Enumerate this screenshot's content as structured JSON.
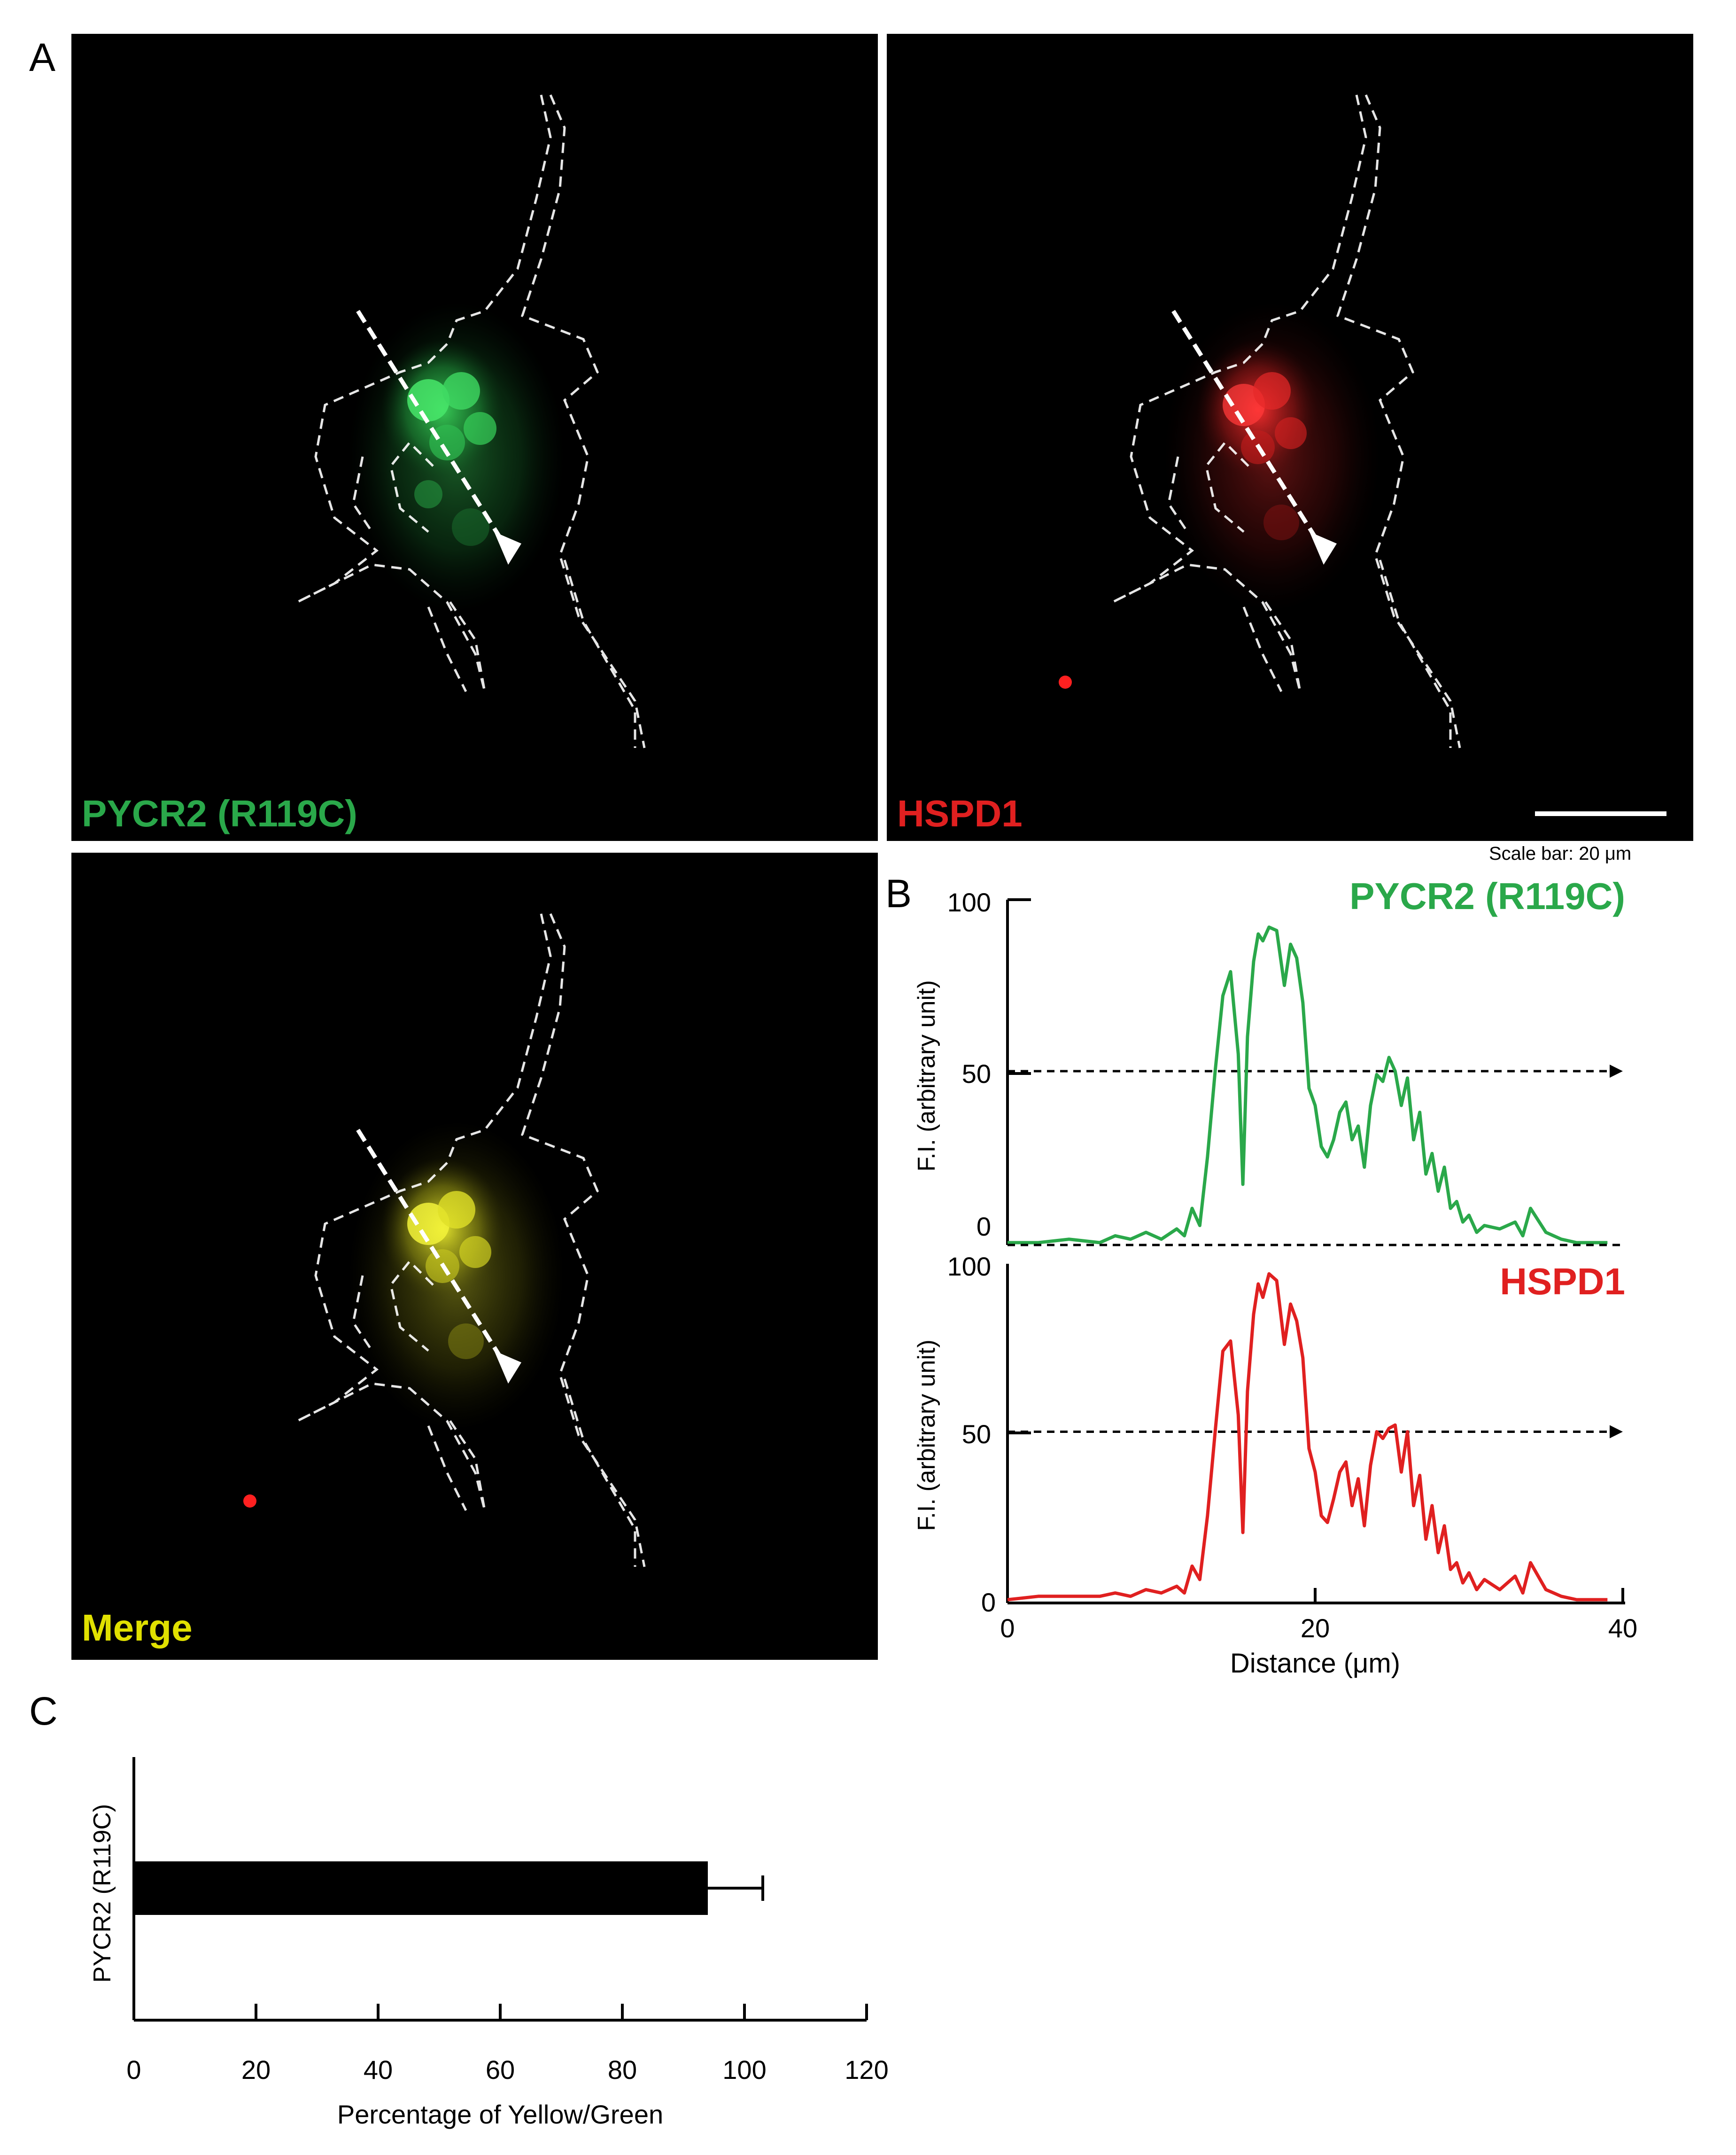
{
  "panels": {
    "a": "A",
    "b": "B",
    "c": "C"
  },
  "micrographs": {
    "green_label": "PYCR2 (R119C)",
    "red_label": "HSPD1",
    "merge_label": "Merge",
    "scale_bar_text": "Scale bar: 20 μm"
  },
  "colors": {
    "green": "#2aa84a",
    "red": "#e02020",
    "yellow": "#e0e000"
  },
  "chart_data": [
    {
      "type": "line",
      "panel": "B-top",
      "title": "PYCR2 (R119C)",
      "ylabel": "F.I. (arbitrary unit)",
      "xlim": [
        0,
        40
      ],
      "ylim": [
        0,
        100
      ],
      "yticks": [
        0,
        50,
        100
      ],
      "reference_line": 50,
      "color": "#2aa84a",
      "x": [
        0,
        2,
        4,
        6,
        7,
        8,
        9,
        10,
        11,
        11.5,
        12,
        12.5,
        13,
        13.5,
        14,
        14.5,
        15,
        15.3,
        15.6,
        16,
        16.3,
        16.6,
        17,
        17.5,
        18,
        18.4,
        18.8,
        19.2,
        19.6,
        20,
        20.4,
        20.8,
        21.2,
        21.6,
        22,
        22.4,
        22.8,
        23.2,
        23.6,
        24,
        24.4,
        24.8,
        25.2,
        25.6,
        26,
        26.4,
        26.8,
        27.2,
        27.6,
        28,
        28.4,
        28.8,
        29.2,
        29.6,
        30,
        30.5,
        31,
        32,
        33,
        33.5,
        34,
        35,
        36,
        37,
        38,
        39
      ],
      "y": [
        0,
        0,
        1,
        0,
        2,
        1,
        3,
        1,
        4,
        2,
        10,
        5,
        25,
        50,
        72,
        79,
        55,
        17,
        60,
        82,
        90,
        88,
        92,
        91,
        75,
        87,
        83,
        70,
        45,
        40,
        28,
        25,
        30,
        38,
        41,
        30,
        34,
        22,
        40,
        49,
        47,
        54,
        50,
        40,
        48,
        30,
        38,
        20,
        26,
        15,
        22,
        10,
        12,
        6,
        8,
        3,
        5,
        4,
        6,
        2,
        10,
        3,
        1,
        0,
        0,
        0
      ]
    },
    {
      "type": "line",
      "panel": "B-bottom",
      "title": "HSPD1",
      "xlabel": "Distance (μm)",
      "ylabel": "F.I. (arbitrary unit)",
      "xlim": [
        0,
        40
      ],
      "ylim": [
        0,
        100
      ],
      "xticks": [
        0,
        20,
        40
      ],
      "yticks": [
        0,
        50,
        100
      ],
      "reference_line": 50,
      "color": "#e02020",
      "x": [
        0,
        2,
        4,
        6,
        7,
        8,
        9,
        10,
        11,
        11.5,
        12,
        12.5,
        13,
        13.5,
        14,
        14.5,
        15,
        15.3,
        15.6,
        16,
        16.3,
        16.6,
        17,
        17.5,
        18,
        18.4,
        18.8,
        19.2,
        19.6,
        20,
        20.4,
        20.8,
        21.2,
        21.6,
        22,
        22.4,
        22.8,
        23.2,
        23.6,
        24,
        24.4,
        24.8,
        25.2,
        25.6,
        26,
        26.4,
        26.8,
        27.2,
        27.6,
        28,
        28.4,
        28.8,
        29.2,
        29.6,
        30,
        30.5,
        31,
        32,
        33,
        33.5,
        34,
        35,
        36,
        37,
        38,
        39
      ],
      "y": [
        0,
        1,
        1,
        1,
        2,
        1,
        3,
        2,
        4,
        2,
        10,
        6,
        25,
        50,
        74,
        77,
        55,
        20,
        62,
        85,
        94,
        90,
        97,
        95,
        76,
        88,
        83,
        72,
        45,
        38,
        25,
        23,
        30,
        38,
        41,
        28,
        36,
        22,
        40,
        50,
        48,
        51,
        52,
        38,
        50,
        28,
        37,
        18,
        28,
        14,
        22,
        9,
        11,
        5,
        8,
        3,
        6,
        3,
        7,
        2,
        11,
        3,
        1,
        0,
        0,
        0
      ]
    },
    {
      "type": "bar",
      "panel": "C",
      "orientation": "horizontal",
      "categories": [
        "PYCR2 (R119C)"
      ],
      "values": [
        94
      ],
      "error": [
        9
      ],
      "xlabel": "Percentage of Yellow/Green",
      "xlim": [
        0,
        120
      ],
      "xticks": [
        0,
        20,
        40,
        60,
        80,
        100,
        120
      ],
      "color": "#000000"
    }
  ]
}
